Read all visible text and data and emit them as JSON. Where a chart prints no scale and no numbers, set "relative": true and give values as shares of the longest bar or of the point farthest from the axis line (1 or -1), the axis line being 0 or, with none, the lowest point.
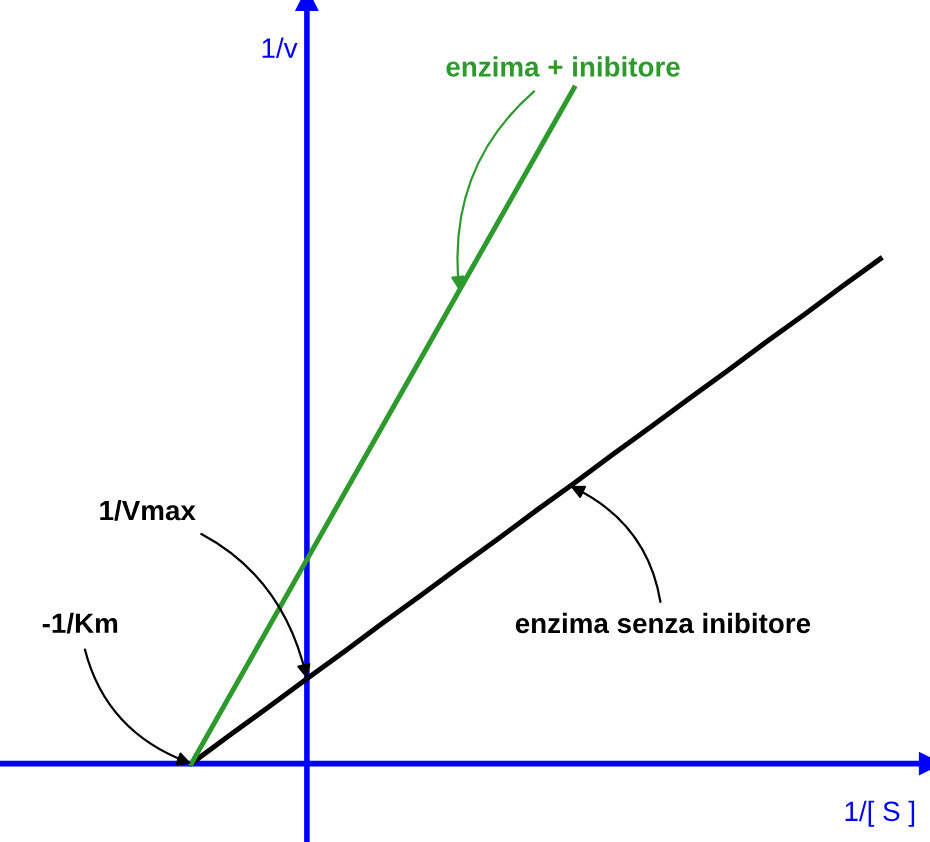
{
  "chart_data": {
    "type": "line",
    "relative": true,
    "xlabel": "1/[ S ]",
    "ylabel": "1/v",
    "legend": false,
    "marker": "none",
    "line_style": "solid",
    "categories": [
      null,
      null,
      null,
      null,
      null,
      null,
      null,
      null,
      null,
      null,
      null,
      null,
      null,
      null,
      null,
      null,
      null,
      null,
      null
    ],
    "series": [
      {
        "color": "#000000",
        "values": [
          0,
          0.042,
          0.083,
          0.125,
          0.166,
          0.208,
          0.249,
          0.291,
          0.332,
          0.374,
          0.415,
          0.457,
          0.498,
          0.54,
          0.581,
          0.623,
          0.664,
          0.706,
          0.747
        ]
      },
      {
        "color": "#2e9a2e",
        "values": [
          0,
          0.1,
          0.2,
          0.3,
          0.4,
          0.5,
          0.6,
          0.7,
          0.8,
          0.9,
          1,
          null,
          null,
          null,
          null,
          null,
          null,
          null,
          null
        ]
      }
    ],
    "annotations": [
      "enzima + inibitore",
      "enzima senza inibitore",
      "1/Vmax",
      "-1/Km"
    ]
  }
}
